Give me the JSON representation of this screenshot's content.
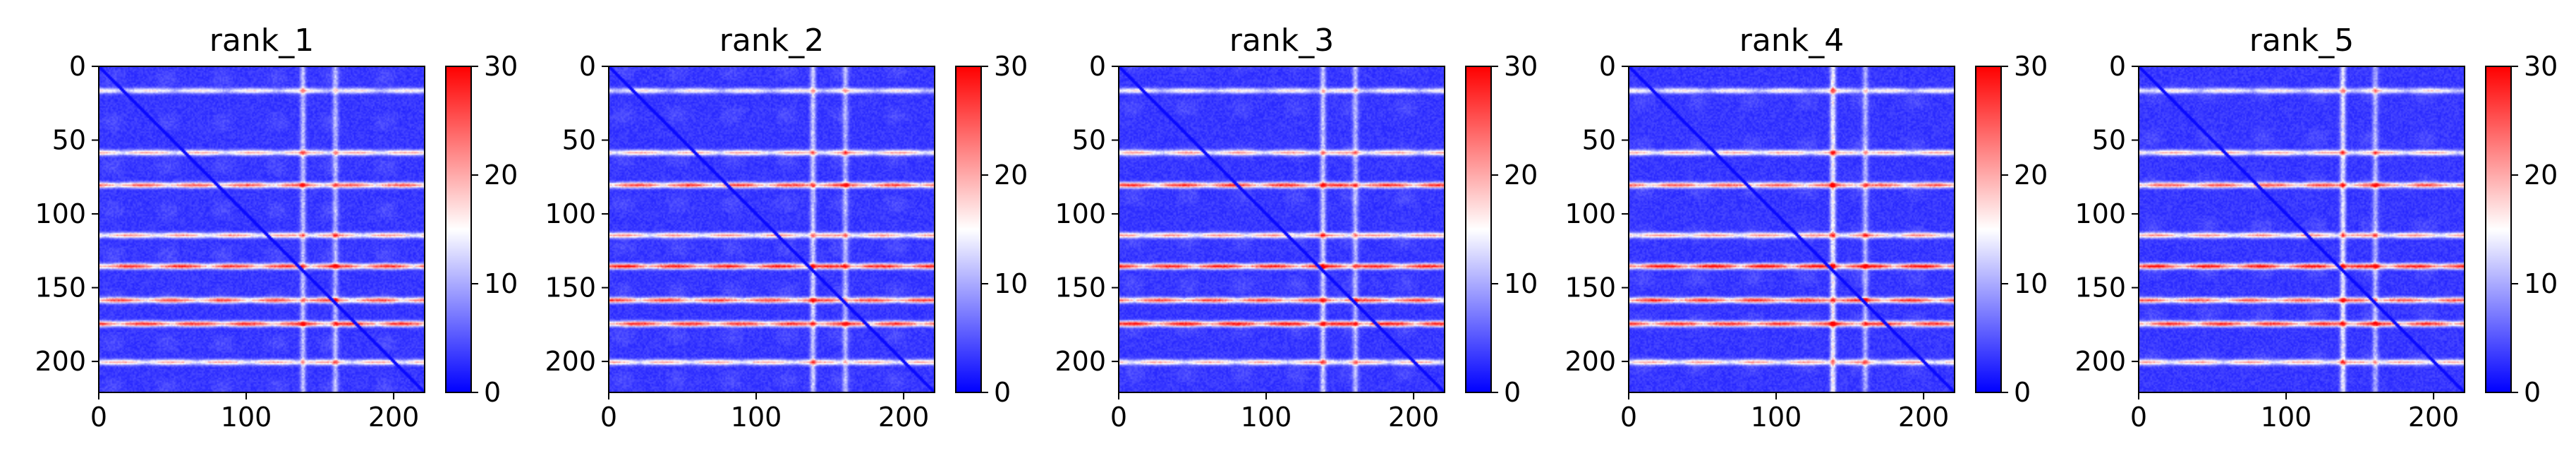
{
  "chart_data": [
    {
      "type": "heatmap",
      "title": "rank_1",
      "xticks": [
        "0",
        "100",
        "200"
      ],
      "yticks": [
        "0",
        "50",
        "100",
        "150",
        "200"
      ],
      "xlim": [
        0,
        221
      ],
      "ylim": [
        221,
        0
      ],
      "colorbar": {
        "ticks": [
          "0",
          "10",
          "20",
          "30"
        ],
        "range": [
          0,
          30
        ],
        "colors": [
          "#0000ff",
          "#ffffff",
          "#ff0000"
        ]
      },
      "size": 221,
      "bands": [
        {
          "y": 16,
          "v": 12
        },
        {
          "y": 58,
          "v": 15
        },
        {
          "y": 80,
          "v": 19
        },
        {
          "y": 114,
          "v": 16
        },
        {
          "y": 135,
          "v": 21
        },
        {
          "y": 158,
          "v": 19
        },
        {
          "y": 174,
          "v": 21
        },
        {
          "y": 200,
          "v": 15
        }
      ],
      "vbands": [
        {
          "x": 138,
          "v": 12
        },
        {
          "x": 160,
          "v": 11
        }
      ]
    },
    {
      "type": "heatmap",
      "title": "rank_2",
      "xticks": [
        "0",
        "100",
        "200"
      ],
      "yticks": [
        "0",
        "50",
        "100",
        "150",
        "200"
      ],
      "xlim": [
        0,
        221
      ],
      "ylim": [
        221,
        0
      ],
      "colorbar": {
        "ticks": [
          "0",
          "10",
          "20",
          "30"
        ],
        "range": [
          0,
          30
        ],
        "colors": [
          "#0000ff",
          "#ffffff",
          "#ff0000"
        ]
      },
      "size": 221,
      "bands": [
        {
          "y": 16,
          "v": 12
        },
        {
          "y": 58,
          "v": 15
        },
        {
          "y": 80,
          "v": 20
        },
        {
          "y": 114,
          "v": 16
        },
        {
          "y": 135,
          "v": 22
        },
        {
          "y": 158,
          "v": 20
        },
        {
          "y": 174,
          "v": 21
        },
        {
          "y": 200,
          "v": 15
        }
      ],
      "vbands": [
        {
          "x": 138,
          "v": 13
        },
        {
          "x": 160,
          "v": 11
        }
      ]
    },
    {
      "type": "heatmap",
      "title": "rank_3",
      "xticks": [
        "0",
        "100",
        "200"
      ],
      "yticks": [
        "0",
        "50",
        "100",
        "150",
        "200"
      ],
      "xlim": [
        0,
        221
      ],
      "ylim": [
        221,
        0
      ],
      "colorbar": {
        "ticks": [
          "0",
          "10",
          "20",
          "30"
        ],
        "range": [
          0,
          30
        ],
        "colors": [
          "#0000ff",
          "#ffffff",
          "#ff0000"
        ]
      },
      "size": 221,
      "bands": [
        {
          "y": 16,
          "v": 12
        },
        {
          "y": 58,
          "v": 15
        },
        {
          "y": 80,
          "v": 21
        },
        {
          "y": 114,
          "v": 16
        },
        {
          "y": 135,
          "v": 22
        },
        {
          "y": 158,
          "v": 20
        },
        {
          "y": 174,
          "v": 22
        },
        {
          "y": 200,
          "v": 15
        }
      ],
      "vbands": [
        {
          "x": 138,
          "v": 13
        },
        {
          "x": 160,
          "v": 11
        }
      ]
    },
    {
      "type": "heatmap",
      "title": "rank_4",
      "xticks": [
        "0",
        "100",
        "200"
      ],
      "yticks": [
        "0",
        "50",
        "100",
        "150",
        "200"
      ],
      "xlim": [
        0,
        221
      ],
      "ylim": [
        221,
        0
      ],
      "colorbar": {
        "ticks": [
          "0",
          "10",
          "20",
          "30"
        ],
        "range": [
          0,
          30
        ],
        "colors": [
          "#0000ff",
          "#ffffff",
          "#ff0000"
        ]
      },
      "size": 221,
      "bands": [
        {
          "y": 16,
          "v": 12
        },
        {
          "y": 58,
          "v": 15
        },
        {
          "y": 80,
          "v": 19
        },
        {
          "y": 114,
          "v": 16
        },
        {
          "y": 135,
          "v": 23
        },
        {
          "y": 158,
          "v": 21
        },
        {
          "y": 174,
          "v": 21
        },
        {
          "y": 200,
          "v": 15
        }
      ],
      "vbands": [
        {
          "x": 138,
          "v": 16
        },
        {
          "x": 160,
          "v": 11
        }
      ]
    },
    {
      "type": "heatmap",
      "title": "rank_5",
      "xticks": [
        "0",
        "100",
        "200"
      ],
      "yticks": [
        "0",
        "50",
        "100",
        "150",
        "200"
      ],
      "xlim": [
        0,
        221
      ],
      "ylim": [
        221,
        0
      ],
      "colorbar": {
        "ticks": [
          "0",
          "10",
          "20",
          "30"
        ],
        "range": [
          0,
          30
        ],
        "colors": [
          "#0000ff",
          "#ffffff",
          "#ff0000"
        ]
      },
      "size": 221,
      "bands": [
        {
          "y": 16,
          "v": 12
        },
        {
          "y": 58,
          "v": 15
        },
        {
          "y": 80,
          "v": 19
        },
        {
          "y": 114,
          "v": 16
        },
        {
          "y": 135,
          "v": 22
        },
        {
          "y": 158,
          "v": 19
        },
        {
          "y": 174,
          "v": 21
        },
        {
          "y": 200,
          "v": 15
        }
      ],
      "vbands": [
        {
          "x": 138,
          "v": 15
        },
        {
          "x": 160,
          "v": 11
        }
      ]
    }
  ]
}
